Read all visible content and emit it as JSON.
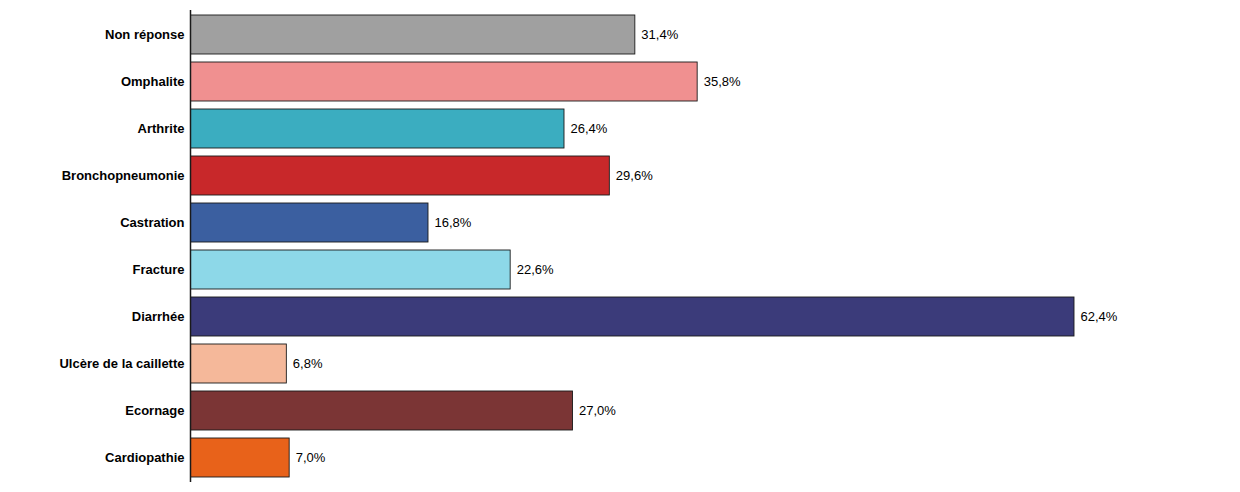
{
  "chart_data": {
    "type": "bar",
    "orientation": "horizontal",
    "categories": [
      "Cardiopathie",
      "Ecornage",
      "Ulcère de la caillette",
      "Diarrhée",
      "Fracture",
      "Castration",
      "Bronchopneumonie",
      "Arthrite",
      "Omphalite",
      "Non réponse"
    ],
    "values": [
      7.0,
      27.0,
      6.8,
      62.4,
      22.6,
      16.8,
      29.6,
      26.4,
      35.8,
      31.4
    ],
    "value_labels": [
      "7,0%",
      "27,0%",
      "6,8%",
      "62,4%",
      "22,6%",
      "16,8%",
      "29,6%",
      "26,4%",
      "35,8%",
      "31,4%"
    ],
    "colors": [
      "#E8621A",
      "#7B3535",
      "#F5B89A",
      "#3B3B7A",
      "#8DD8E8",
      "#3B5FA0",
      "#C8282A",
      "#3BADC0",
      "#F09090",
      "#A0A0A0"
    ],
    "xlim": [
      0,
      72
    ],
    "data_labels": true,
    "tick_labels": "y",
    "grid": false
  }
}
